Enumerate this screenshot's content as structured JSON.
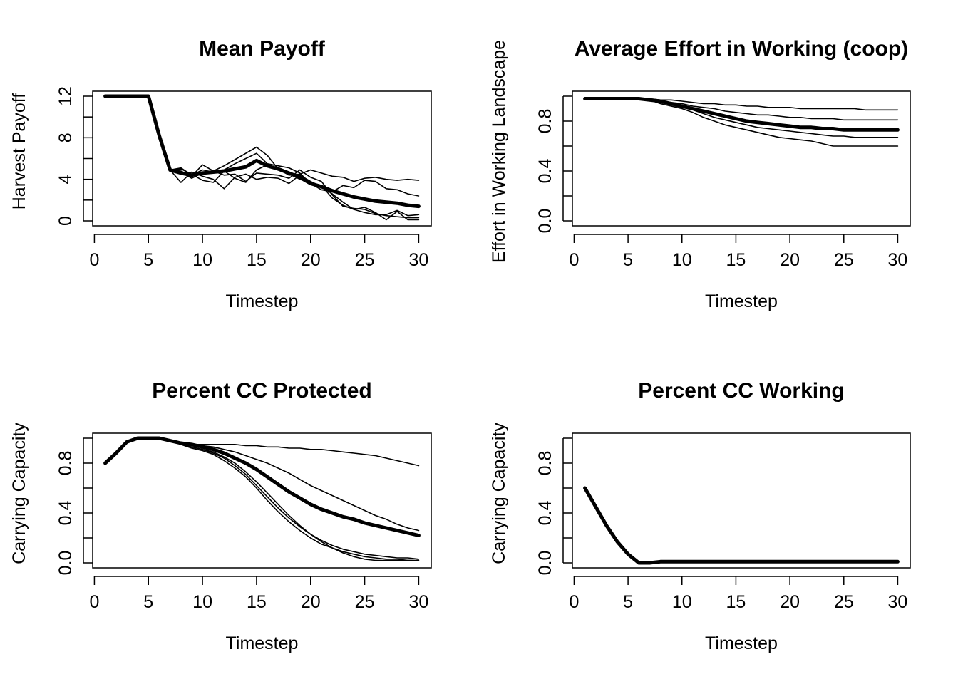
{
  "chart_data": [
    {
      "type": "line",
      "title": "Mean Payoff",
      "xlabel": "Timestep",
      "ylabel": "Harvest Payoff",
      "xlim": [
        0,
        30
      ],
      "ylim": [
        0,
        12
      ],
      "xticks": [
        0,
        5,
        10,
        15,
        20,
        25,
        30
      ],
      "yticks": [
        0,
        4,
        8,
        12
      ],
      "yticks_minor": [
        2,
        6,
        10
      ],
      "x": [
        1,
        2,
        3,
        4,
        5,
        6,
        7,
        8,
        9,
        10,
        11,
        12,
        13,
        14,
        15,
        16,
        17,
        18,
        19,
        20,
        21,
        22,
        23,
        24,
        25,
        26,
        27,
        28,
        29,
        30
      ],
      "series": [
        {
          "bold": false,
          "values": [
            12,
            12,
            12,
            12,
            12,
            8.2,
            4.9,
            4.7,
            4.1,
            4.6,
            4.8,
            5.3,
            5.9,
            6.5,
            7.1,
            6.3,
            5.0,
            4.4,
            4.5,
            4.9,
            4.6,
            4.3,
            4.2,
            3.8,
            4.1,
            4.2,
            4.0,
            3.9,
            4.0,
            3.9
          ]
        },
        {
          "bold": false,
          "values": [
            12,
            12,
            12,
            12,
            12,
            8.2,
            4.9,
            5.1,
            4.4,
            4.9,
            4.7,
            4.9,
            5.5,
            6.0,
            6.5,
            5.5,
            5.3,
            5.1,
            4.6,
            3.6,
            3.0,
            2.8,
            3.4,
            3.2,
            3.9,
            3.8,
            3.1,
            3.0,
            2.6,
            2.4
          ]
        },
        {
          "bold": false,
          "values": [
            12,
            12,
            12,
            12,
            12,
            8.2,
            4.9,
            4.8,
            4.3,
            5.4,
            4.8,
            4.4,
            4.5,
            3.8,
            4.6,
            4.5,
            4.4,
            4.1,
            4.9,
            4.2,
            3.8,
            2.5,
            1.4,
            1.2,
            1.1,
            0.7,
            0.5,
            0.4,
            0.3,
            0.3
          ]
        },
        {
          "bold": false,
          "values": [
            12,
            12,
            12,
            12,
            12,
            8.2,
            4.9,
            3.7,
            4.7,
            4.3,
            4.0,
            3.1,
            4.2,
            4.5,
            4.0,
            4.2,
            4.1,
            3.6,
            4.4,
            3.8,
            3.3,
            2.6,
            1.8,
            1.1,
            1.3,
            0.8,
            0.1,
            0.9,
            0.1,
            0.1
          ]
        },
        {
          "bold": false,
          "values": [
            12,
            12,
            12,
            12,
            12,
            8.2,
            4.9,
            5.0,
            4.5,
            3.9,
            3.7,
            4.8,
            4.1,
            3.7,
            4.9,
            5.4,
            5.1,
            4.6,
            4.0,
            3.7,
            3.4,
            2.2,
            1.5,
            1.1,
            0.8,
            0.6,
            0.6,
            1.0,
            0.5,
            0.6
          ]
        },
        {
          "bold": true,
          "values": [
            12,
            12,
            12,
            12,
            12,
            8.2,
            4.9,
            4.6,
            4.4,
            4.6,
            4.7,
            4.8,
            5.0,
            5.2,
            5.8,
            5.3,
            5.0,
            4.6,
            4.2,
            3.6,
            3.3,
            2.9,
            2.6,
            2.3,
            2.1,
            1.9,
            1.8,
            1.7,
            1.5,
            1.4
          ]
        }
      ]
    },
    {
      "type": "line",
      "title": "Average Effort in Working (coop)",
      "xlabel": "Timestep",
      "ylabel": "Effort in Working Landscape",
      "xlim": [
        0,
        30
      ],
      "ylim": [
        0,
        1
      ],
      "xticks": [
        0,
        5,
        10,
        15,
        20,
        25,
        30
      ],
      "yticks": [
        0.0,
        0.4,
        0.8
      ],
      "yticks_minor": [
        0.2,
        0.6,
        1.0
      ],
      "ytick_labels": [
        "0.0",
        "0.4",
        "0.8"
      ],
      "x": [
        1,
        2,
        3,
        4,
        5,
        6,
        7,
        8,
        9,
        10,
        11,
        12,
        13,
        14,
        15,
        16,
        17,
        18,
        19,
        20,
        21,
        22,
        23,
        24,
        25,
        26,
        27,
        28,
        29,
        30
      ],
      "series": [
        {
          "bold": false,
          "values": [
            0.98,
            0.98,
            0.98,
            0.98,
            0.98,
            0.98,
            0.98,
            0.97,
            0.97,
            0.96,
            0.95,
            0.94,
            0.94,
            0.93,
            0.93,
            0.92,
            0.92,
            0.91,
            0.91,
            0.91,
            0.9,
            0.9,
            0.9,
            0.9,
            0.9,
            0.9,
            0.89,
            0.89,
            0.89,
            0.89
          ]
        },
        {
          "bold": false,
          "values": [
            0.98,
            0.98,
            0.98,
            0.98,
            0.98,
            0.98,
            0.98,
            0.96,
            0.95,
            0.94,
            0.92,
            0.91,
            0.9,
            0.88,
            0.87,
            0.86,
            0.85,
            0.85,
            0.84,
            0.83,
            0.83,
            0.82,
            0.82,
            0.82,
            0.81,
            0.81,
            0.81,
            0.81,
            0.81,
            0.81
          ]
        },
        {
          "bold": false,
          "values": [
            0.98,
            0.98,
            0.98,
            0.98,
            0.98,
            0.98,
            0.97,
            0.95,
            0.93,
            0.91,
            0.89,
            0.86,
            0.83,
            0.81,
            0.79,
            0.77,
            0.75,
            0.74,
            0.73,
            0.72,
            0.71,
            0.7,
            0.69,
            0.68,
            0.68,
            0.67,
            0.67,
            0.67,
            0.67,
            0.67
          ]
        },
        {
          "bold": false,
          "values": [
            0.98,
            0.98,
            0.98,
            0.98,
            0.98,
            0.98,
            0.97,
            0.94,
            0.92,
            0.9,
            0.87,
            0.83,
            0.8,
            0.77,
            0.75,
            0.73,
            0.71,
            0.69,
            0.67,
            0.66,
            0.65,
            0.64,
            0.62,
            0.6,
            0.6,
            0.6,
            0.6,
            0.6,
            0.6,
            0.6
          ]
        },
        {
          "bold": true,
          "values": [
            0.98,
            0.98,
            0.98,
            0.98,
            0.98,
            0.98,
            0.97,
            0.96,
            0.94,
            0.92,
            0.9,
            0.88,
            0.86,
            0.84,
            0.82,
            0.8,
            0.79,
            0.78,
            0.77,
            0.76,
            0.75,
            0.75,
            0.74,
            0.74,
            0.73,
            0.73,
            0.73,
            0.73,
            0.73,
            0.73
          ]
        }
      ]
    },
    {
      "type": "line",
      "title": "Percent CC Protected",
      "xlabel": "Timestep",
      "ylabel": "Carrying Capacity",
      "xlim": [
        0,
        30
      ],
      "ylim": [
        0,
        1
      ],
      "xticks": [
        0,
        5,
        10,
        15,
        20,
        25,
        30
      ],
      "yticks": [
        0.0,
        0.4,
        0.8
      ],
      "yticks_minor": [
        0.2,
        0.6,
        1.0
      ],
      "ytick_labels": [
        "0.0",
        "0.4",
        "0.8"
      ],
      "x": [
        1,
        2,
        3,
        4,
        5,
        6,
        7,
        8,
        9,
        10,
        11,
        12,
        13,
        14,
        15,
        16,
        17,
        18,
        19,
        20,
        21,
        22,
        23,
        24,
        25,
        26,
        27,
        28,
        29,
        30
      ],
      "series": [
        {
          "bold": false,
          "values": [
            0.8,
            0.88,
            0.97,
            1.0,
            1.0,
            1.0,
            0.98,
            0.96,
            0.95,
            0.95,
            0.95,
            0.95,
            0.95,
            0.94,
            0.94,
            0.93,
            0.93,
            0.92,
            0.92,
            0.91,
            0.91,
            0.9,
            0.89,
            0.88,
            0.87,
            0.86,
            0.84,
            0.82,
            0.8,
            0.78
          ]
        },
        {
          "bold": false,
          "values": [
            0.8,
            0.88,
            0.97,
            1.0,
            1.0,
            1.0,
            0.98,
            0.96,
            0.95,
            0.94,
            0.93,
            0.91,
            0.89,
            0.86,
            0.83,
            0.8,
            0.76,
            0.72,
            0.67,
            0.62,
            0.58,
            0.54,
            0.5,
            0.46,
            0.42,
            0.38,
            0.35,
            0.31,
            0.28,
            0.26
          ]
        },
        {
          "bold": false,
          "values": [
            0.8,
            0.88,
            0.97,
            1.0,
            1.0,
            1.0,
            0.98,
            0.95,
            0.93,
            0.91,
            0.88,
            0.84,
            0.78,
            0.71,
            0.62,
            0.53,
            0.44,
            0.36,
            0.29,
            0.23,
            0.18,
            0.14,
            0.11,
            0.09,
            0.07,
            0.06,
            0.05,
            0.04,
            0.04,
            0.03
          ]
        },
        {
          "bold": false,
          "values": [
            0.8,
            0.88,
            0.97,
            1.0,
            1.0,
            1.0,
            0.98,
            0.95,
            0.92,
            0.9,
            0.87,
            0.82,
            0.76,
            0.69,
            0.6,
            0.5,
            0.41,
            0.33,
            0.26,
            0.2,
            0.15,
            0.12,
            0.09,
            0.07,
            0.05,
            0.04,
            0.03,
            0.03,
            0.02,
            0.02
          ]
        },
        {
          "bold": false,
          "values": [
            0.8,
            0.88,
            0.97,
            1.0,
            1.0,
            1.0,
            0.98,
            0.95,
            0.93,
            0.91,
            0.89,
            0.85,
            0.8,
            0.73,
            0.65,
            0.56,
            0.47,
            0.38,
            0.3,
            0.23,
            0.17,
            0.12,
            0.08,
            0.05,
            0.03,
            0.02,
            0.02,
            0.02,
            0.02,
            0.02
          ]
        },
        {
          "bold": true,
          "values": [
            0.8,
            0.88,
            0.97,
            1.0,
            1.0,
            1.0,
            0.98,
            0.96,
            0.95,
            0.93,
            0.91,
            0.88,
            0.84,
            0.8,
            0.75,
            0.69,
            0.63,
            0.57,
            0.52,
            0.47,
            0.43,
            0.4,
            0.37,
            0.35,
            0.32,
            0.3,
            0.28,
            0.26,
            0.24,
            0.22
          ]
        }
      ]
    },
    {
      "type": "line",
      "title": "Percent CC Working",
      "xlabel": "Timestep",
      "ylabel": "Carrying Capacity",
      "xlim": [
        0,
        30
      ],
      "ylim": [
        0,
        1
      ],
      "xticks": [
        0,
        5,
        10,
        15,
        20,
        25,
        30
      ],
      "yticks": [
        0.0,
        0.4,
        0.8
      ],
      "yticks_minor": [
        0.2,
        0.6,
        1.0
      ],
      "ytick_labels": [
        "0.0",
        "0.4",
        "0.8"
      ],
      "x": [
        1,
        2,
        3,
        4,
        5,
        6,
        7,
        8,
        9,
        10,
        11,
        12,
        13,
        14,
        15,
        16,
        17,
        18,
        19,
        20,
        21,
        22,
        23,
        24,
        25,
        26,
        27,
        28,
        29,
        30
      ],
      "series": [
        {
          "bold": true,
          "values": [
            0.6,
            0.45,
            0.3,
            0.17,
            0.07,
            0.0,
            0.0,
            0.01,
            0.01,
            0.01,
            0.01,
            0.01,
            0.01,
            0.01,
            0.01,
            0.01,
            0.01,
            0.01,
            0.01,
            0.01,
            0.01,
            0.01,
            0.01,
            0.01,
            0.01,
            0.01,
            0.01,
            0.01,
            0.01,
            0.01
          ]
        }
      ]
    }
  ]
}
